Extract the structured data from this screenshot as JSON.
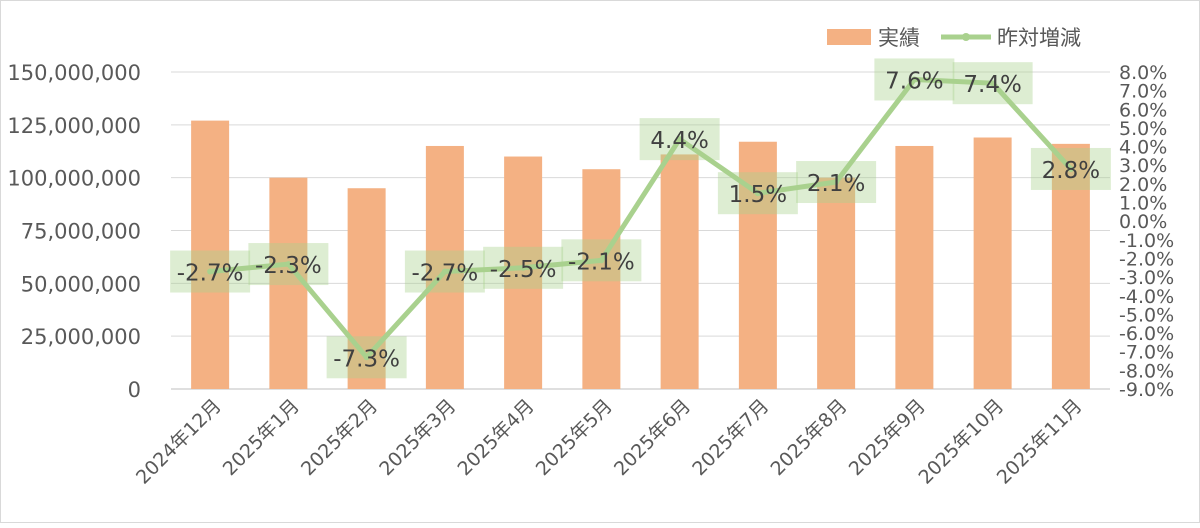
{
  "chart_data": {
    "type": "bar+line",
    "categories": [
      "2024年12月",
      "2025年1月",
      "2025年2月",
      "2025年3月",
      "2025年4月",
      "2025年5月",
      "2025年6月",
      "2025年7月",
      "2025年8月",
      "2025年9月",
      "2025年10月",
      "2025年11月"
    ],
    "series": [
      {
        "name": "実績",
        "type": "bar",
        "axis": "left",
        "color": "#F4B183",
        "values": [
          127000000,
          100000000,
          95000000,
          115000000,
          110000000,
          104000000,
          111000000,
          117000000,
          100000000,
          115000000,
          119000000,
          116000000
        ]
      },
      {
        "name": "昨対増減",
        "type": "line",
        "axis": "right",
        "color": "#A9D18E",
        "values": [
          -2.7,
          -2.3,
          -7.3,
          -2.7,
          -2.5,
          -2.1,
          4.4,
          1.5,
          2.1,
          7.6,
          7.4,
          2.8
        ],
        "labels": [
          "-2.7%",
          "-2.3%",
          "-7.3%",
          "-2.7%",
          "-2.5%",
          "-2.1%",
          "4.4%",
          "1.5%",
          "2.1%",
          "7.6%",
          "7.4%",
          "2.8%"
        ]
      }
    ],
    "left_axis": {
      "ylim": [
        0,
        150000000
      ],
      "ticks": [
        "0",
        "25,000,000",
        "50,000,000",
        "75,000,000",
        "100,000,000",
        "125,000,000",
        "150,000,000"
      ]
    },
    "right_axis": {
      "ylim": [
        -9,
        8
      ],
      "ticks": [
        "-9.0%",
        "-8.0%",
        "-7.0%",
        "-6.0%",
        "-5.0%",
        "-4.0%",
        "-3.0%",
        "-2.0%",
        "-1.0%",
        "0.0%",
        "1.0%",
        "2.0%",
        "3.0%",
        "4.0%",
        "5.0%",
        "6.0%",
        "7.0%",
        "8.0%"
      ]
    },
    "grid": true,
    "legend": {
      "position": "top-right",
      "entries": [
        "実績",
        "昨対増減"
      ]
    }
  }
}
